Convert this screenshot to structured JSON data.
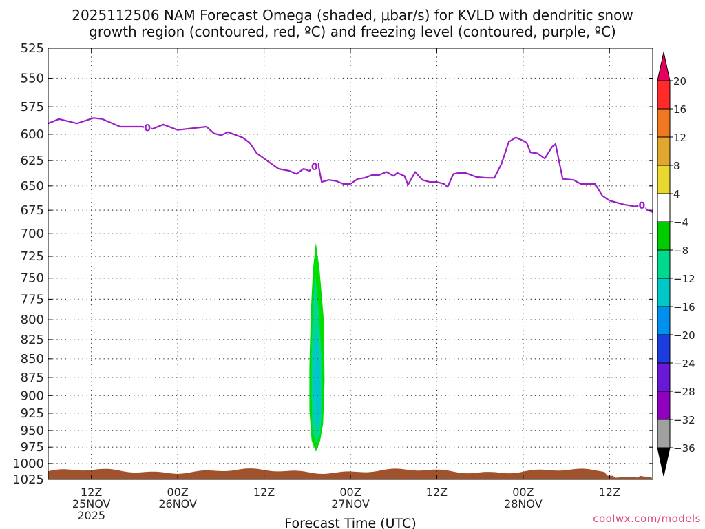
{
  "chart_data": {
    "type": "heatmap",
    "title_line1": "2025112506 NAM Forecast Omega (shaded, μbar/s) for KVLD with dendritic snow",
    "title_line2": "growth region (contoured, red, ºC) and freezing level (contoured, purple, ºC)",
    "xlabel": "Forecast Time (UTC)",
    "ylabel": "",
    "y_axis": {
      "scale": "log-pressure",
      "inverted": true,
      "ylim": [
        1025,
        525
      ],
      "ticks": [
        525,
        550,
        575,
        600,
        625,
        650,
        675,
        700,
        725,
        750,
        775,
        800,
        825,
        850,
        875,
        900,
        925,
        950,
        975,
        1000,
        1025
      ]
    },
    "x_axis": {
      "xlim_hours": [
        0,
        84
      ],
      "ticks": [
        {
          "hour": 6,
          "label": "12Z",
          "sub": "25NOV",
          "sub2": "2025"
        },
        {
          "hour": 18,
          "label": "00Z",
          "sub": "26NOV",
          "sub2": ""
        },
        {
          "hour": 30,
          "label": "12Z",
          "sub": "",
          "sub2": ""
        },
        {
          "hour": 42,
          "label": "00Z",
          "sub": "27NOV",
          "sub2": ""
        },
        {
          "hour": 54,
          "label": "12Z",
          "sub": "",
          "sub2": ""
        },
        {
          "hour": 66,
          "label": "00Z",
          "sub": "28NOV",
          "sub2": ""
        },
        {
          "hour": 78,
          "label": "12Z",
          "sub": "",
          "sub2": ""
        }
      ]
    },
    "grid": true,
    "freezing_level": {
      "color": "#9b1fc7",
      "contour_label": "0",
      "label_hours": [
        13.8,
        37,
        82.5
      ],
      "points": [
        [
          0,
          590
        ],
        [
          1.5,
          586
        ],
        [
          4,
          590
        ],
        [
          6.3,
          585
        ],
        [
          7.5,
          586
        ],
        [
          10,
          593
        ],
        [
          13,
          593
        ],
        [
          14.5,
          595
        ],
        [
          16,
          591
        ],
        [
          18,
          596
        ],
        [
          22,
          593
        ],
        [
          23,
          599
        ],
        [
          24,
          601
        ],
        [
          25,
          598
        ],
        [
          27,
          603
        ],
        [
          28,
          608
        ],
        [
          29,
          618
        ],
        [
          30,
          623
        ],
        [
          32,
          633
        ],
        [
          33.5,
          635
        ],
        [
          34.5,
          638
        ],
        [
          35.5,
          633
        ],
        [
          36.3,
          635
        ],
        [
          37.5,
          628
        ],
        [
          38,
          646
        ],
        [
          39,
          644
        ],
        [
          40,
          645
        ],
        [
          41,
          648
        ],
        [
          42,
          648
        ],
        [
          43,
          643
        ],
        [
          44,
          642
        ],
        [
          45,
          639
        ],
        [
          46,
          639
        ],
        [
          47,
          636
        ],
        [
          48,
          640
        ],
        [
          48.5,
          637
        ],
        [
          49.5,
          640
        ],
        [
          50,
          649
        ],
        [
          51,
          636
        ],
        [
          52,
          644
        ],
        [
          53,
          646
        ],
        [
          54,
          646
        ],
        [
          55,
          648
        ],
        [
          55.5,
          651
        ],
        [
          56.3,
          638
        ],
        [
          57,
          637
        ],
        [
          58,
          637
        ],
        [
          59.5,
          641
        ],
        [
          61,
          642
        ],
        [
          62,
          642
        ],
        [
          63,
          628
        ],
        [
          64,
          607
        ],
        [
          65,
          603
        ],
        [
          66,
          606
        ],
        [
          66.5,
          608
        ],
        [
          67,
          617
        ],
        [
          68,
          618
        ],
        [
          69,
          623
        ],
        [
          70,
          612
        ],
        [
          70.5,
          609
        ],
        [
          71.5,
          643
        ],
        [
          73,
          644
        ],
        [
          74,
          648
        ],
        [
          75,
          648
        ],
        [
          76,
          648
        ],
        [
          77,
          660
        ],
        [
          78,
          665
        ],
        [
          80,
          669
        ],
        [
          81.5,
          671
        ],
        [
          82.5,
          670
        ],
        [
          83.3,
          675
        ],
        [
          84,
          677
        ]
      ]
    },
    "omega_shading": {
      "description": "upward motion plume",
      "regions": [
        {
          "level": "-8 to -4",
          "color": "#00dd00",
          "outline": [
            [
              37.2,
              710
            ],
            [
              37.7,
              740
            ],
            [
              38.3,
              800
            ],
            [
              38.4,
              880
            ],
            [
              38.2,
              940
            ],
            [
              37.8,
              965
            ],
            [
              37.2,
              982
            ],
            [
              36.6,
              965
            ],
            [
              36.3,
              920
            ],
            [
              36.3,
              860
            ],
            [
              36.5,
              790
            ],
            [
              36.8,
              740
            ]
          ]
        },
        {
          "level": "-12 to -8",
          "color": "#00d98c",
          "outline": [
            [
              37.1,
              745
            ],
            [
              37.6,
              790
            ],
            [
              38.0,
              850
            ],
            [
              38.1,
              920
            ],
            [
              37.8,
              955
            ],
            [
              37.2,
              968
            ],
            [
              36.7,
              950
            ],
            [
              36.6,
              900
            ],
            [
              36.6,
              830
            ],
            [
              36.8,
              780
            ]
          ]
        },
        {
          "level": "-16 to -12",
          "color": "#00c8c8",
          "outline": [
            [
              37.3,
              810
            ],
            [
              37.8,
              860
            ],
            [
              37.9,
              920
            ],
            [
              37.5,
              945
            ],
            [
              37.0,
              940
            ],
            [
              36.8,
              890
            ],
            [
              36.9,
              840
            ]
          ]
        }
      ]
    },
    "terrain": {
      "color": "#a0522d",
      "top_hpa": 1012
    },
    "colorbar": {
      "labels": [
        "20",
        "16",
        "12",
        "8",
        "4",
        "−4",
        "−8",
        "−12",
        "−16",
        "−20",
        "−24",
        "−28",
        "−32",
        "−36"
      ],
      "colors": [
        "#e8005e",
        "#ff2a2a",
        "#f07820",
        "#e0a830",
        "#e8d830",
        "#ffffff",
        "#00cc00",
        "#00d98c",
        "#00c8c8",
        "#0090f0",
        "#1c3ce0",
        "#6a18d8",
        "#9000c0",
        "#a0a0a0",
        "#000000"
      ]
    }
  },
  "credit": "coolwx.com/models"
}
